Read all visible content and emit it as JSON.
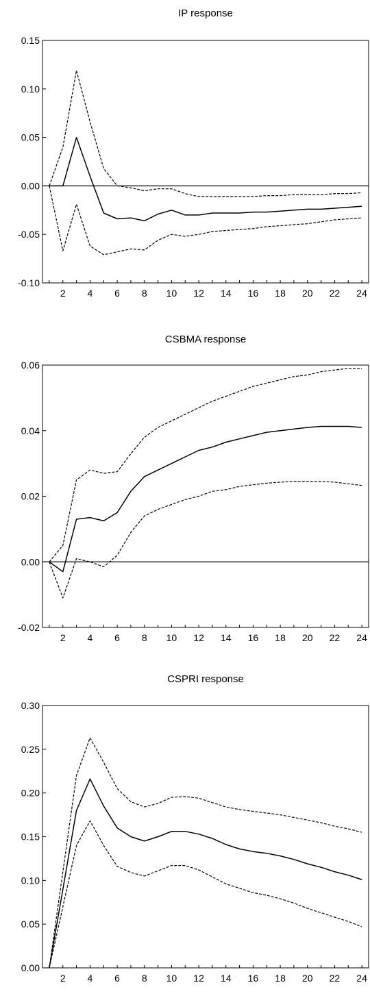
{
  "chart_data": [
    {
      "type": "line",
      "title": "IP response",
      "x": [
        1,
        2,
        3,
        4,
        5,
        6,
        7,
        8,
        9,
        10,
        11,
        12,
        13,
        14,
        15,
        16,
        17,
        18,
        19,
        20,
        21,
        22,
        23,
        24
      ],
      "xlim": [
        0.5,
        24.5
      ],
      "xticks": [
        2,
        4,
        6,
        8,
        10,
        12,
        14,
        16,
        18,
        20,
        22,
        24
      ],
      "ylim": [
        -0.1,
        0.15
      ],
      "yticks": [
        -0.1,
        -0.05,
        0.0,
        0.05,
        0.1,
        0.15
      ],
      "ytick_labels": [
        "-0.10",
        "-0.05",
        "0.00",
        "0.05",
        "0.10",
        "0.15"
      ],
      "zero_line": true,
      "grid": false,
      "series": [
        {
          "role": "response",
          "style": "solid",
          "values": [
            0.0,
            0.0,
            0.05,
            0.01,
            -0.028,
            -0.034,
            -0.033,
            -0.036,
            -0.029,
            -0.025,
            -0.03,
            -0.03,
            -0.028,
            -0.028,
            -0.028,
            -0.027,
            -0.027,
            -0.026,
            -0.025,
            -0.024,
            -0.024,
            -0.023,
            -0.022,
            -0.021
          ]
        },
        {
          "role": "upper-band",
          "style": "dashed",
          "values": [
            0.0,
            0.04,
            0.119,
            0.066,
            0.018,
            0.0,
            -0.002,
            -0.005,
            -0.003,
            -0.003,
            -0.008,
            -0.011,
            -0.011,
            -0.011,
            -0.011,
            -0.011,
            -0.01,
            -0.01,
            -0.009,
            -0.009,
            -0.009,
            -0.008,
            -0.008,
            -0.007
          ]
        },
        {
          "role": "lower-band",
          "style": "dashed",
          "values": [
            0.0,
            -0.067,
            -0.019,
            -0.062,
            -0.071,
            -0.068,
            -0.065,
            -0.066,
            -0.056,
            -0.05,
            -0.052,
            -0.05,
            -0.047,
            -0.046,
            -0.045,
            -0.044,
            -0.042,
            -0.041,
            -0.04,
            -0.039,
            -0.037,
            -0.035,
            -0.034,
            -0.033
          ]
        }
      ]
    },
    {
      "type": "line",
      "title": "CSBMA response",
      "x": [
        1,
        2,
        3,
        4,
        5,
        6,
        7,
        8,
        9,
        10,
        11,
        12,
        13,
        14,
        15,
        16,
        17,
        18,
        19,
        20,
        21,
        22,
        23,
        24
      ],
      "xlim": [
        0.5,
        24.5
      ],
      "xticks": [
        2,
        4,
        6,
        8,
        10,
        12,
        14,
        16,
        18,
        20,
        22,
        24
      ],
      "ylim": [
        -0.02,
        0.06
      ],
      "yticks": [
        -0.02,
        0.0,
        0.02,
        0.04,
        0.06
      ],
      "ytick_labels": [
        "-0.02",
        "0.00",
        "0.02",
        "0.04",
        "0.06"
      ],
      "zero_line": true,
      "grid": false,
      "series": [
        {
          "role": "response",
          "style": "solid",
          "values": [
            0.0,
            -0.003,
            0.013,
            0.0135,
            0.0125,
            0.015,
            0.0215,
            0.026,
            0.028,
            0.03,
            0.032,
            0.034,
            0.035,
            0.0365,
            0.0375,
            0.0385,
            0.0395,
            0.04,
            0.0405,
            0.041,
            0.0413,
            0.0413,
            0.0413,
            0.041
          ]
        },
        {
          "role": "upper-band",
          "style": "dashed",
          "values": [
            0.0,
            0.005,
            0.025,
            0.028,
            0.027,
            0.0275,
            0.033,
            0.038,
            0.041,
            0.043,
            0.045,
            0.047,
            0.049,
            0.0505,
            0.052,
            0.0535,
            0.0545,
            0.0555,
            0.0565,
            0.057,
            0.058,
            0.0585,
            0.059,
            0.059
          ]
        },
        {
          "role": "lower-band",
          "style": "dashed",
          "values": [
            0.0,
            -0.011,
            0.001,
            0.0,
            -0.0015,
            0.002,
            0.009,
            0.014,
            0.016,
            0.0175,
            0.019,
            0.02,
            0.0215,
            0.022,
            0.023,
            0.0235,
            0.024,
            0.0243,
            0.0245,
            0.0245,
            0.0245,
            0.0243,
            0.0238,
            0.0233
          ]
        }
      ]
    },
    {
      "type": "line",
      "title": "CSPRI response",
      "x": [
        1,
        2,
        3,
        4,
        5,
        6,
        7,
        8,
        9,
        10,
        11,
        12,
        13,
        14,
        15,
        16,
        17,
        18,
        19,
        20,
        21,
        22,
        23,
        24
      ],
      "xlim": [
        0.5,
        24.5
      ],
      "xticks": [
        2,
        4,
        6,
        8,
        10,
        12,
        14,
        16,
        18,
        20,
        22,
        24
      ],
      "ylim": [
        0.0,
        0.3
      ],
      "yticks": [
        0.0,
        0.05,
        0.1,
        0.15,
        0.2,
        0.25,
        0.3
      ],
      "ytick_labels": [
        "0.00",
        "0.05",
        "0.10",
        "0.15",
        "0.20",
        "0.25",
        "0.30"
      ],
      "zero_line": false,
      "grid": false,
      "series": [
        {
          "role": "response",
          "style": "solid",
          "values": [
            0.0,
            0.09,
            0.18,
            0.216,
            0.185,
            0.16,
            0.15,
            0.145,
            0.15,
            0.156,
            0.156,
            0.153,
            0.148,
            0.141,
            0.136,
            0.133,
            0.131,
            0.128,
            0.124,
            0.119,
            0.115,
            0.11,
            0.106,
            0.101
          ]
        },
        {
          "role": "upper-band",
          "style": "dashed",
          "values": [
            0.0,
            0.11,
            0.22,
            0.263,
            0.235,
            0.205,
            0.19,
            0.184,
            0.188,
            0.195,
            0.196,
            0.194,
            0.189,
            0.184,
            0.181,
            0.179,
            0.177,
            0.175,
            0.172,
            0.169,
            0.166,
            0.162,
            0.159,
            0.155
          ]
        },
        {
          "role": "lower-band",
          "style": "dashed",
          "values": [
            0.0,
            0.07,
            0.14,
            0.168,
            0.14,
            0.116,
            0.109,
            0.105,
            0.111,
            0.117,
            0.117,
            0.112,
            0.104,
            0.096,
            0.091,
            0.086,
            0.083,
            0.079,
            0.074,
            0.068,
            0.063,
            0.058,
            0.053,
            0.047
          ]
        }
      ]
    }
  ]
}
